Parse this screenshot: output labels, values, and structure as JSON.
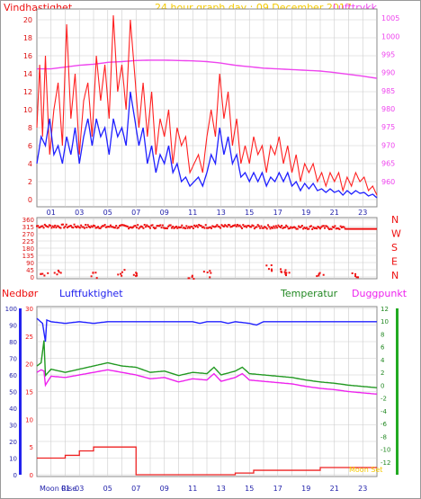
{
  "header": {
    "left_label": "Vindhastighet",
    "title": "24 hour graph day : 09 December 2017",
    "right_label": "Lufttrykk"
  },
  "colors": {
    "wind_gust": "#ff2020",
    "wind_avg": "#2020ff",
    "pressure": "#ee44ee",
    "direction": "#ee1111",
    "rain": "#ee2222",
    "humidity": "#2222ff",
    "temperature": "#229922",
    "dewpoint": "#ee22ee",
    "header_yellow": "#f4c900",
    "grid": "#cccccc"
  },
  "chart_data": [
    {
      "type": "line",
      "name": "wind-pressure",
      "x_hours": [
        0,
        24
      ],
      "x_ticks": [
        "01",
        "03",
        "05",
        "07",
        "09",
        "11",
        "13",
        "15",
        "17",
        "19",
        "21",
        "23"
      ],
      "ylabel_left": "Vindhastighet",
      "ylabel_right": "Lufttrykk",
      "ylim_left": [
        0,
        21
      ],
      "yticks_left": [
        "0",
        "2",
        "4",
        "6",
        "8",
        "10",
        "12",
        "14",
        "16",
        "18",
        "20"
      ],
      "ylim_right": [
        955,
        1007
      ],
      "yticks_right": [
        "960",
        "965",
        "970",
        "975",
        "980",
        "985",
        "990",
        "995",
        "1000",
        "1005"
      ],
      "gust_anchors": [
        [
          0.0,
          8
        ],
        [
          0.2,
          15
        ],
        [
          0.4,
          7
        ],
        [
          0.6,
          16
        ],
        [
          0.9,
          5
        ],
        [
          1.2,
          10
        ],
        [
          1.5,
          13
        ],
        [
          1.8,
          6
        ],
        [
          2.1,
          19.5
        ],
        [
          2.4,
          9
        ],
        [
          2.7,
          14
        ],
        [
          3.0,
          5
        ],
        [
          3.3,
          11
        ],
        [
          3.6,
          13
        ],
        [
          3.9,
          7
        ],
        [
          4.2,
          16
        ],
        [
          4.5,
          11
        ],
        [
          4.8,
          15
        ],
        [
          5.1,
          9
        ],
        [
          5.4,
          20.5
        ],
        [
          5.7,
          12
        ],
        [
          6.0,
          15
        ],
        [
          6.3,
          10
        ],
        [
          6.6,
          20
        ],
        [
          6.9,
          14
        ],
        [
          7.2,
          8
        ],
        [
          7.5,
          13
        ],
        [
          7.8,
          7
        ],
        [
          8.1,
          12
        ],
        [
          8.4,
          5
        ],
        [
          8.7,
          9
        ],
        [
          9.0,
          7
        ],
        [
          9.3,
          10
        ],
        [
          9.6,
          4
        ],
        [
          9.9,
          8
        ],
        [
          10.2,
          6
        ],
        [
          10.5,
          7
        ],
        [
          10.8,
          3
        ],
        [
          11.1,
          4
        ],
        [
          11.4,
          5
        ],
        [
          11.7,
          3
        ],
        [
          12.0,
          7
        ],
        [
          12.3,
          10
        ],
        [
          12.6,
          7
        ],
        [
          12.9,
          14
        ],
        [
          13.2,
          9
        ],
        [
          13.5,
          12
        ],
        [
          13.8,
          6
        ],
        [
          14.1,
          9
        ],
        [
          14.4,
          4
        ],
        [
          14.7,
          6
        ],
        [
          15.0,
          4
        ],
        [
          15.3,
          7
        ],
        [
          15.6,
          5
        ],
        [
          15.9,
          6
        ],
        [
          16.2,
          3
        ],
        [
          16.5,
          6
        ],
        [
          16.8,
          5
        ],
        [
          17.1,
          7
        ],
        [
          17.4,
          4
        ],
        [
          17.7,
          6
        ],
        [
          18.0,
          3
        ],
        [
          18.3,
          5
        ],
        [
          18.6,
          2
        ],
        [
          18.9,
          4
        ],
        [
          19.2,
          3
        ],
        [
          19.5,
          4
        ],
        [
          19.8,
          2
        ],
        [
          20.1,
          3
        ],
        [
          20.4,
          1.5
        ],
        [
          20.7,
          3
        ],
        [
          21.0,
          2
        ],
        [
          21.3,
          3
        ],
        [
          21.6,
          1
        ],
        [
          21.9,
          2.5
        ],
        [
          22.2,
          1.5
        ],
        [
          22.5,
          3
        ],
        [
          22.8,
          2
        ],
        [
          23.1,
          2.5
        ],
        [
          23.4,
          1
        ],
        [
          23.7,
          1.5
        ],
        [
          24.0,
          0.5
        ]
      ],
      "avg_anchors": [
        [
          0.0,
          4
        ],
        [
          0.3,
          7
        ],
        [
          0.6,
          6
        ],
        [
          0.9,
          9
        ],
        [
          1.2,
          5
        ],
        [
          1.5,
          6
        ],
        [
          1.8,
          4
        ],
        [
          2.1,
          7
        ],
        [
          2.4,
          5
        ],
        [
          2.7,
          8
        ],
        [
          3.0,
          4
        ],
        [
          3.3,
          7
        ],
        [
          3.6,
          9
        ],
        [
          3.9,
          6
        ],
        [
          4.2,
          9
        ],
        [
          4.5,
          7
        ],
        [
          4.8,
          8
        ],
        [
          5.1,
          5
        ],
        [
          5.4,
          9
        ],
        [
          5.7,
          7
        ],
        [
          6.0,
          8
        ],
        [
          6.3,
          6
        ],
        [
          6.6,
          12
        ],
        [
          6.9,
          9
        ],
        [
          7.2,
          6
        ],
        [
          7.5,
          8
        ],
        [
          7.8,
          4
        ],
        [
          8.1,
          6
        ],
        [
          8.4,
          3
        ],
        [
          8.7,
          5
        ],
        [
          9.0,
          4
        ],
        [
          9.3,
          6
        ],
        [
          9.6,
          3
        ],
        [
          9.9,
          4
        ],
        [
          10.2,
          2
        ],
        [
          10.5,
          2.5
        ],
        [
          10.8,
          1.5
        ],
        [
          11.1,
          2
        ],
        [
          11.4,
          2.5
        ],
        [
          11.7,
          1.5
        ],
        [
          12.0,
          3
        ],
        [
          12.3,
          5
        ],
        [
          12.6,
          4
        ],
        [
          12.9,
          8
        ],
        [
          13.2,
          5
        ],
        [
          13.5,
          7
        ],
        [
          13.8,
          4
        ],
        [
          14.1,
          5
        ],
        [
          14.4,
          2.5
        ],
        [
          14.7,
          3
        ],
        [
          15.0,
          2
        ],
        [
          15.3,
          3
        ],
        [
          15.6,
          2
        ],
        [
          15.9,
          3
        ],
        [
          16.2,
          1.5
        ],
        [
          16.5,
          2.5
        ],
        [
          16.8,
          2
        ],
        [
          17.1,
          3
        ],
        [
          17.4,
          2
        ],
        [
          17.7,
          3
        ],
        [
          18.0,
          1.5
        ],
        [
          18.3,
          2
        ],
        [
          18.6,
          1
        ],
        [
          18.9,
          1.8
        ],
        [
          19.2,
          1.2
        ],
        [
          19.5,
          1.8
        ],
        [
          19.8,
          1
        ],
        [
          20.1,
          1.2
        ],
        [
          20.4,
          0.8
        ],
        [
          20.7,
          1.2
        ],
        [
          21.0,
          0.8
        ],
        [
          21.3,
          1
        ],
        [
          21.6,
          0.5
        ],
        [
          21.9,
          1
        ],
        [
          22.2,
          0.6
        ],
        [
          22.5,
          1
        ],
        [
          22.8,
          0.7
        ],
        [
          23.1,
          0.8
        ],
        [
          23.4,
          0.4
        ],
        [
          23.7,
          0.6
        ],
        [
          24.0,
          0.2
        ]
      ],
      "pressure_anchors": [
        [
          0,
          991
        ],
        [
          1,
          991
        ],
        [
          2,
          991.5
        ],
        [
          3,
          992
        ],
        [
          4,
          992.3
        ],
        [
          5,
          992.8
        ],
        [
          6,
          993
        ],
        [
          7,
          993.3
        ],
        [
          8,
          993.4
        ],
        [
          9,
          993.4
        ],
        [
          10,
          993.3
        ],
        [
          11,
          993.2
        ],
        [
          12,
          993
        ],
        [
          13,
          992.6
        ],
        [
          14,
          992
        ],
        [
          15,
          991.6
        ],
        [
          16,
          991.2
        ],
        [
          17,
          991
        ],
        [
          18,
          990.8
        ],
        [
          19,
          990.6
        ],
        [
          20,
          990.4
        ],
        [
          21,
          990
        ],
        [
          22,
          989.5
        ],
        [
          23,
          989
        ],
        [
          24,
          988.4
        ]
      ]
    },
    {
      "type": "scatter",
      "name": "wind-direction",
      "x_hours": [
        0,
        24
      ],
      "ylim": [
        0,
        360
      ],
      "yticks": [
        "0",
        "45",
        "90",
        "135",
        "180",
        "225",
        "270",
        "315",
        "360"
      ],
      "compass_labels": [
        "N",
        "W",
        "S",
        "E",
        "N"
      ],
      "main_band": [
        [
          0,
          318
        ],
        [
          6,
          314
        ],
        [
          12,
          316
        ],
        [
          18,
          312
        ],
        [
          22,
          306
        ],
        [
          24,
          300
        ]
      ],
      "clusters": [
        [
          0.5,
          15
        ],
        [
          1.5,
          30
        ],
        [
          4,
          10
        ],
        [
          6,
          25
        ],
        [
          7,
          20
        ],
        [
          11,
          8
        ],
        [
          12,
          18
        ],
        [
          16.5,
          55
        ],
        [
          17.5,
          40
        ],
        [
          17.8,
          25
        ],
        [
          20,
          12
        ],
        [
          22.5,
          8
        ]
      ]
    },
    {
      "type": "line",
      "name": "rain-humidity-temp-dew",
      "x_hours": [
        0,
        24
      ],
      "x_ticks": [
        "01",
        "03",
        "05",
        "07",
        "09",
        "11",
        "13",
        "15",
        "17",
        "19",
        "21",
        "23"
      ],
      "labels": {
        "rain": "Nedbør",
        "humidity": "Luftfuktighet",
        "temperature": "Temperatur",
        "dewpoint": "Duggpunkt"
      },
      "ylim_left": [
        0,
        100
      ],
      "yticks_left": [
        "0",
        "10",
        "20",
        "30",
        "40",
        "50",
        "60",
        "70",
        "80",
        "90",
        "100"
      ],
      "ylim_mid": [
        0,
        30
      ],
      "yticks_mid": [
        "0",
        "5",
        "10",
        "15",
        "20",
        "25",
        "30"
      ],
      "ylim_right": [
        -14,
        12
      ],
      "yticks_right": [
        "-12",
        "-10",
        "-8",
        "-6",
        "-4",
        "-2",
        "0",
        "2",
        "4",
        "6",
        "8",
        "10",
        "12"
      ],
      "humidity": [
        [
          0,
          94
        ],
        [
          0.4,
          91
        ],
        [
          0.6,
          80
        ],
        [
          0.7,
          93
        ],
        [
          1,
          92
        ],
        [
          2,
          91
        ],
        [
          3,
          92
        ],
        [
          4,
          91
        ],
        [
          5,
          92
        ],
        [
          6,
          92
        ],
        [
          7,
          92
        ],
        [
          8,
          92
        ],
        [
          9,
          92
        ],
        [
          10,
          92
        ],
        [
          11,
          92
        ],
        [
          11.5,
          91
        ],
        [
          12,
          92
        ],
        [
          13,
          92
        ],
        [
          13.5,
          91
        ],
        [
          14,
          92
        ],
        [
          15,
          91
        ],
        [
          15.5,
          90
        ],
        [
          16,
          92
        ],
        [
          17,
          92
        ],
        [
          18,
          92
        ],
        [
          19,
          92
        ],
        [
          20,
          92
        ],
        [
          21,
          92
        ],
        [
          22,
          92
        ],
        [
          23,
          92
        ],
        [
          24,
          92
        ]
      ],
      "temperature": [
        [
          0,
          3
        ],
        [
          0.3,
          3.5
        ],
        [
          0.5,
          7
        ],
        [
          0.6,
          1.5
        ],
        [
          1,
          2.5
        ],
        [
          2,
          2
        ],
        [
          3,
          2.5
        ],
        [
          4,
          3
        ],
        [
          5,
          3.5
        ],
        [
          6,
          3
        ],
        [
          7,
          2.8
        ],
        [
          8,
          2
        ],
        [
          9,
          2.2
        ],
        [
          10,
          1.5
        ],
        [
          11,
          2
        ],
        [
          12,
          1.8
        ],
        [
          12.5,
          2.8
        ],
        [
          13,
          1.6
        ],
        [
          14,
          2.2
        ],
        [
          14.5,
          2.8
        ],
        [
          15,
          1.8
        ],
        [
          16,
          1.6
        ],
        [
          17,
          1.4
        ],
        [
          18,
          1.2
        ],
        [
          19,
          0.8
        ],
        [
          20,
          0.5
        ],
        [
          21,
          0.3
        ],
        [
          22,
          0
        ],
        [
          23,
          -0.2
        ],
        [
          24,
          -0.4
        ]
      ],
      "dewpoint": [
        [
          0,
          2
        ],
        [
          0.3,
          2.4
        ],
        [
          0.5,
          2.2
        ],
        [
          0.6,
          0
        ],
        [
          1,
          1.4
        ],
        [
          2,
          1.2
        ],
        [
          3,
          1.6
        ],
        [
          4,
          2
        ],
        [
          5,
          2.4
        ],
        [
          6,
          2
        ],
        [
          7,
          1.6
        ],
        [
          8,
          1
        ],
        [
          9,
          1.2
        ],
        [
          10,
          0.5
        ],
        [
          11,
          1
        ],
        [
          12,
          0.8
        ],
        [
          12.5,
          1.8
        ],
        [
          13,
          0.6
        ],
        [
          14,
          1.2
        ],
        [
          14.5,
          1.8
        ],
        [
          15,
          0.8
        ],
        [
          16,
          0.6
        ],
        [
          17,
          0.4
        ],
        [
          18,
          0.2
        ],
        [
          19,
          -0.2
        ],
        [
          20,
          -0.5
        ],
        [
          21,
          -0.7
        ],
        [
          22,
          -1
        ],
        [
          23,
          -1.2
        ],
        [
          24,
          -1.4
        ]
      ],
      "rain_steps": [
        [
          0,
          3
        ],
        [
          2,
          3.5
        ],
        [
          3,
          4.3
        ],
        [
          4,
          5
        ],
        [
          7,
          0
        ],
        [
          14,
          0.3
        ],
        [
          15.3,
          0.8
        ],
        [
          20,
          1.3
        ],
        [
          24,
          1.3
        ]
      ],
      "footer": {
        "moon_rise": "Moon Rise",
        "moon_rise_hour": "01",
        "moon_set": "Moon Set"
      }
    }
  ]
}
